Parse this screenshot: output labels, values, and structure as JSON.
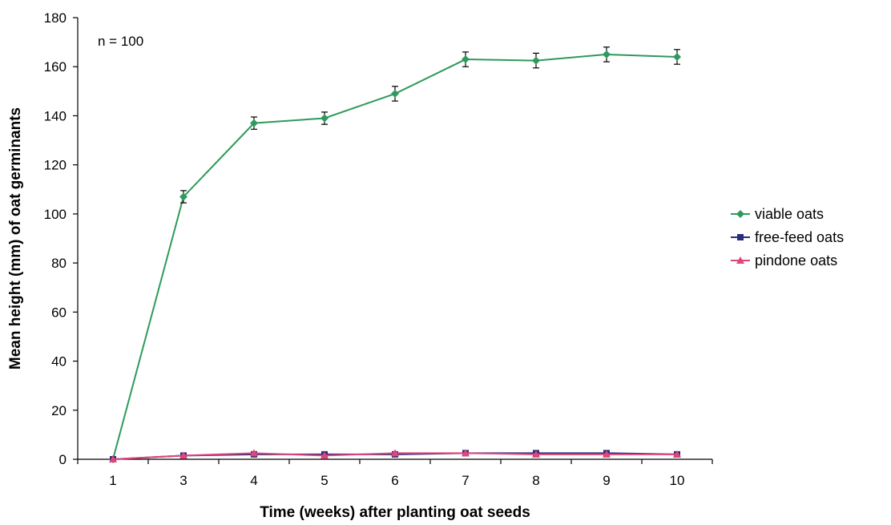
{
  "chart_data": {
    "type": "line",
    "title": "",
    "xlabel": "Time (weeks) after planting oat seeds",
    "ylabel": "Mean height (mm) of oat germinants",
    "ylim": [
      0,
      180
    ],
    "yticks": [
      0,
      20,
      40,
      60,
      80,
      100,
      120,
      140,
      160,
      180
    ],
    "categories": [
      "1",
      "3",
      "4",
      "5",
      "6",
      "7",
      "8",
      "9",
      "10"
    ],
    "grid": false,
    "legend_position": "right",
    "annotation": "n = 100",
    "series": [
      {
        "name": "viable oats",
        "color": "#2e9a5c",
        "marker": "diamond",
        "values": [
          0,
          107,
          137,
          139,
          149,
          163,
          162.5,
          165,
          164
        ],
        "errors": [
          0,
          2.5,
          2.5,
          2.5,
          3,
          3,
          3,
          3,
          3
        ]
      },
      {
        "name": "free-feed oats",
        "color": "#2b2e7a",
        "marker": "square",
        "values": [
          0,
          1.5,
          2,
          2,
          2,
          2.5,
          2.5,
          2.5,
          2
        ]
      },
      {
        "name": "pindone oats",
        "color": "#e0457b",
        "marker": "triangle",
        "values": [
          0,
          1.5,
          2.5,
          1.5,
          2.5,
          2.5,
          2,
          2,
          2
        ]
      }
    ]
  }
}
